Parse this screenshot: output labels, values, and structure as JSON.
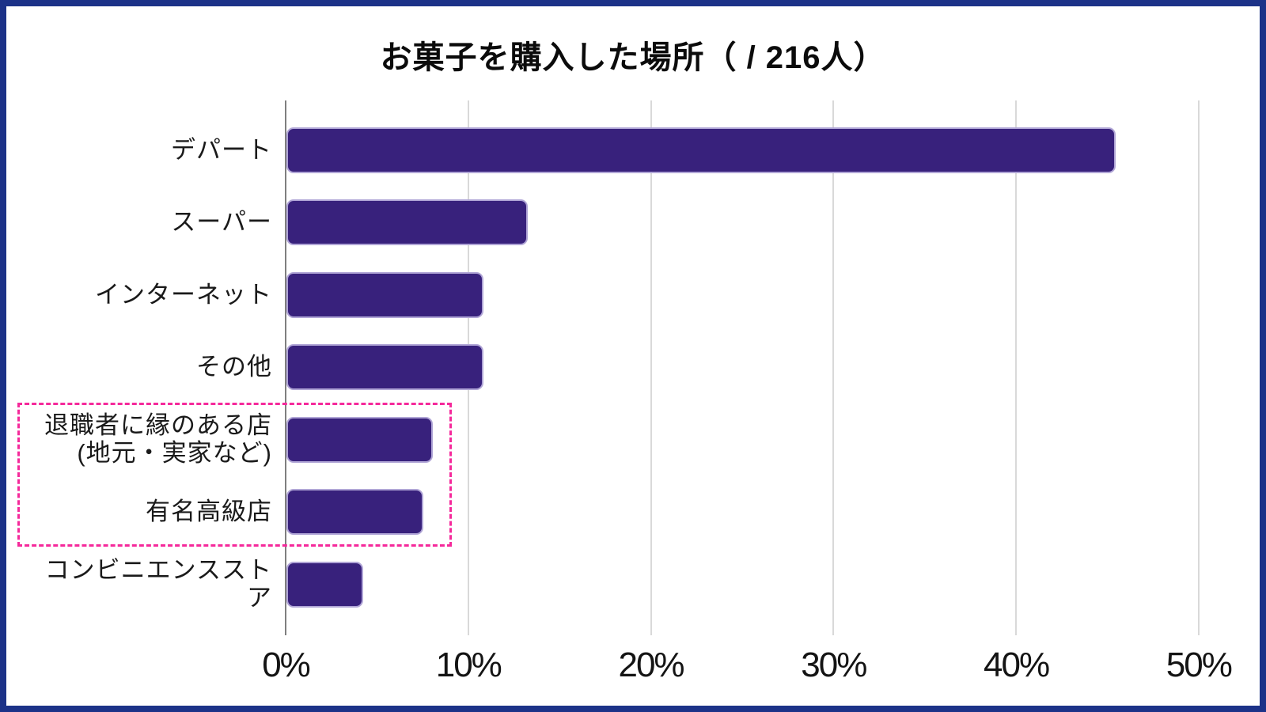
{
  "title": "お菓子を購入した場所（ / 216人）",
  "respondents": "216人",
  "chart_data": {
    "type": "bar",
    "orientation": "horizontal",
    "title": "お菓子を購入した場所（ / 216人）",
    "categories": [
      "デパート",
      "スーパー",
      "インターネット",
      "その他",
      "退職者に縁のある店(地元・実家など)",
      "有名高級店",
      "コンビニエンスストア"
    ],
    "category_lines": [
      [
        "デパート"
      ],
      [
        "スーパー"
      ],
      [
        "インターネット"
      ],
      [
        "その他"
      ],
      [
        "退職者に縁のある店",
        "(地元・実家など)"
      ],
      [
        "有名高級店"
      ],
      [
        "コンビニエンススト",
        "ア"
      ]
    ],
    "values": [
      45.4,
      13.2,
      10.8,
      10.8,
      8.0,
      7.5,
      4.2
    ],
    "value_unit": "%",
    "x_ticks": [
      "0%",
      "10%",
      "20%",
      "30%",
      "40%",
      "50%"
    ],
    "x_tick_values": [
      0,
      10,
      20,
      30,
      40,
      50
    ],
    "xlim": [
      0,
      50
    ],
    "grid": true,
    "legend": false,
    "highlighted_categories": [
      "退職者に縁のある店(地元・実家など)",
      "有名高級店"
    ],
    "colors": {
      "bar_fill": "#38217c",
      "bar_border": "#b0a5d6",
      "gridline": "#d9d9d9",
      "axis_line": "#7f7f7f",
      "highlight_box": "#f5299b",
      "outer_frame": "#1c3288",
      "text": "#111111"
    }
  }
}
